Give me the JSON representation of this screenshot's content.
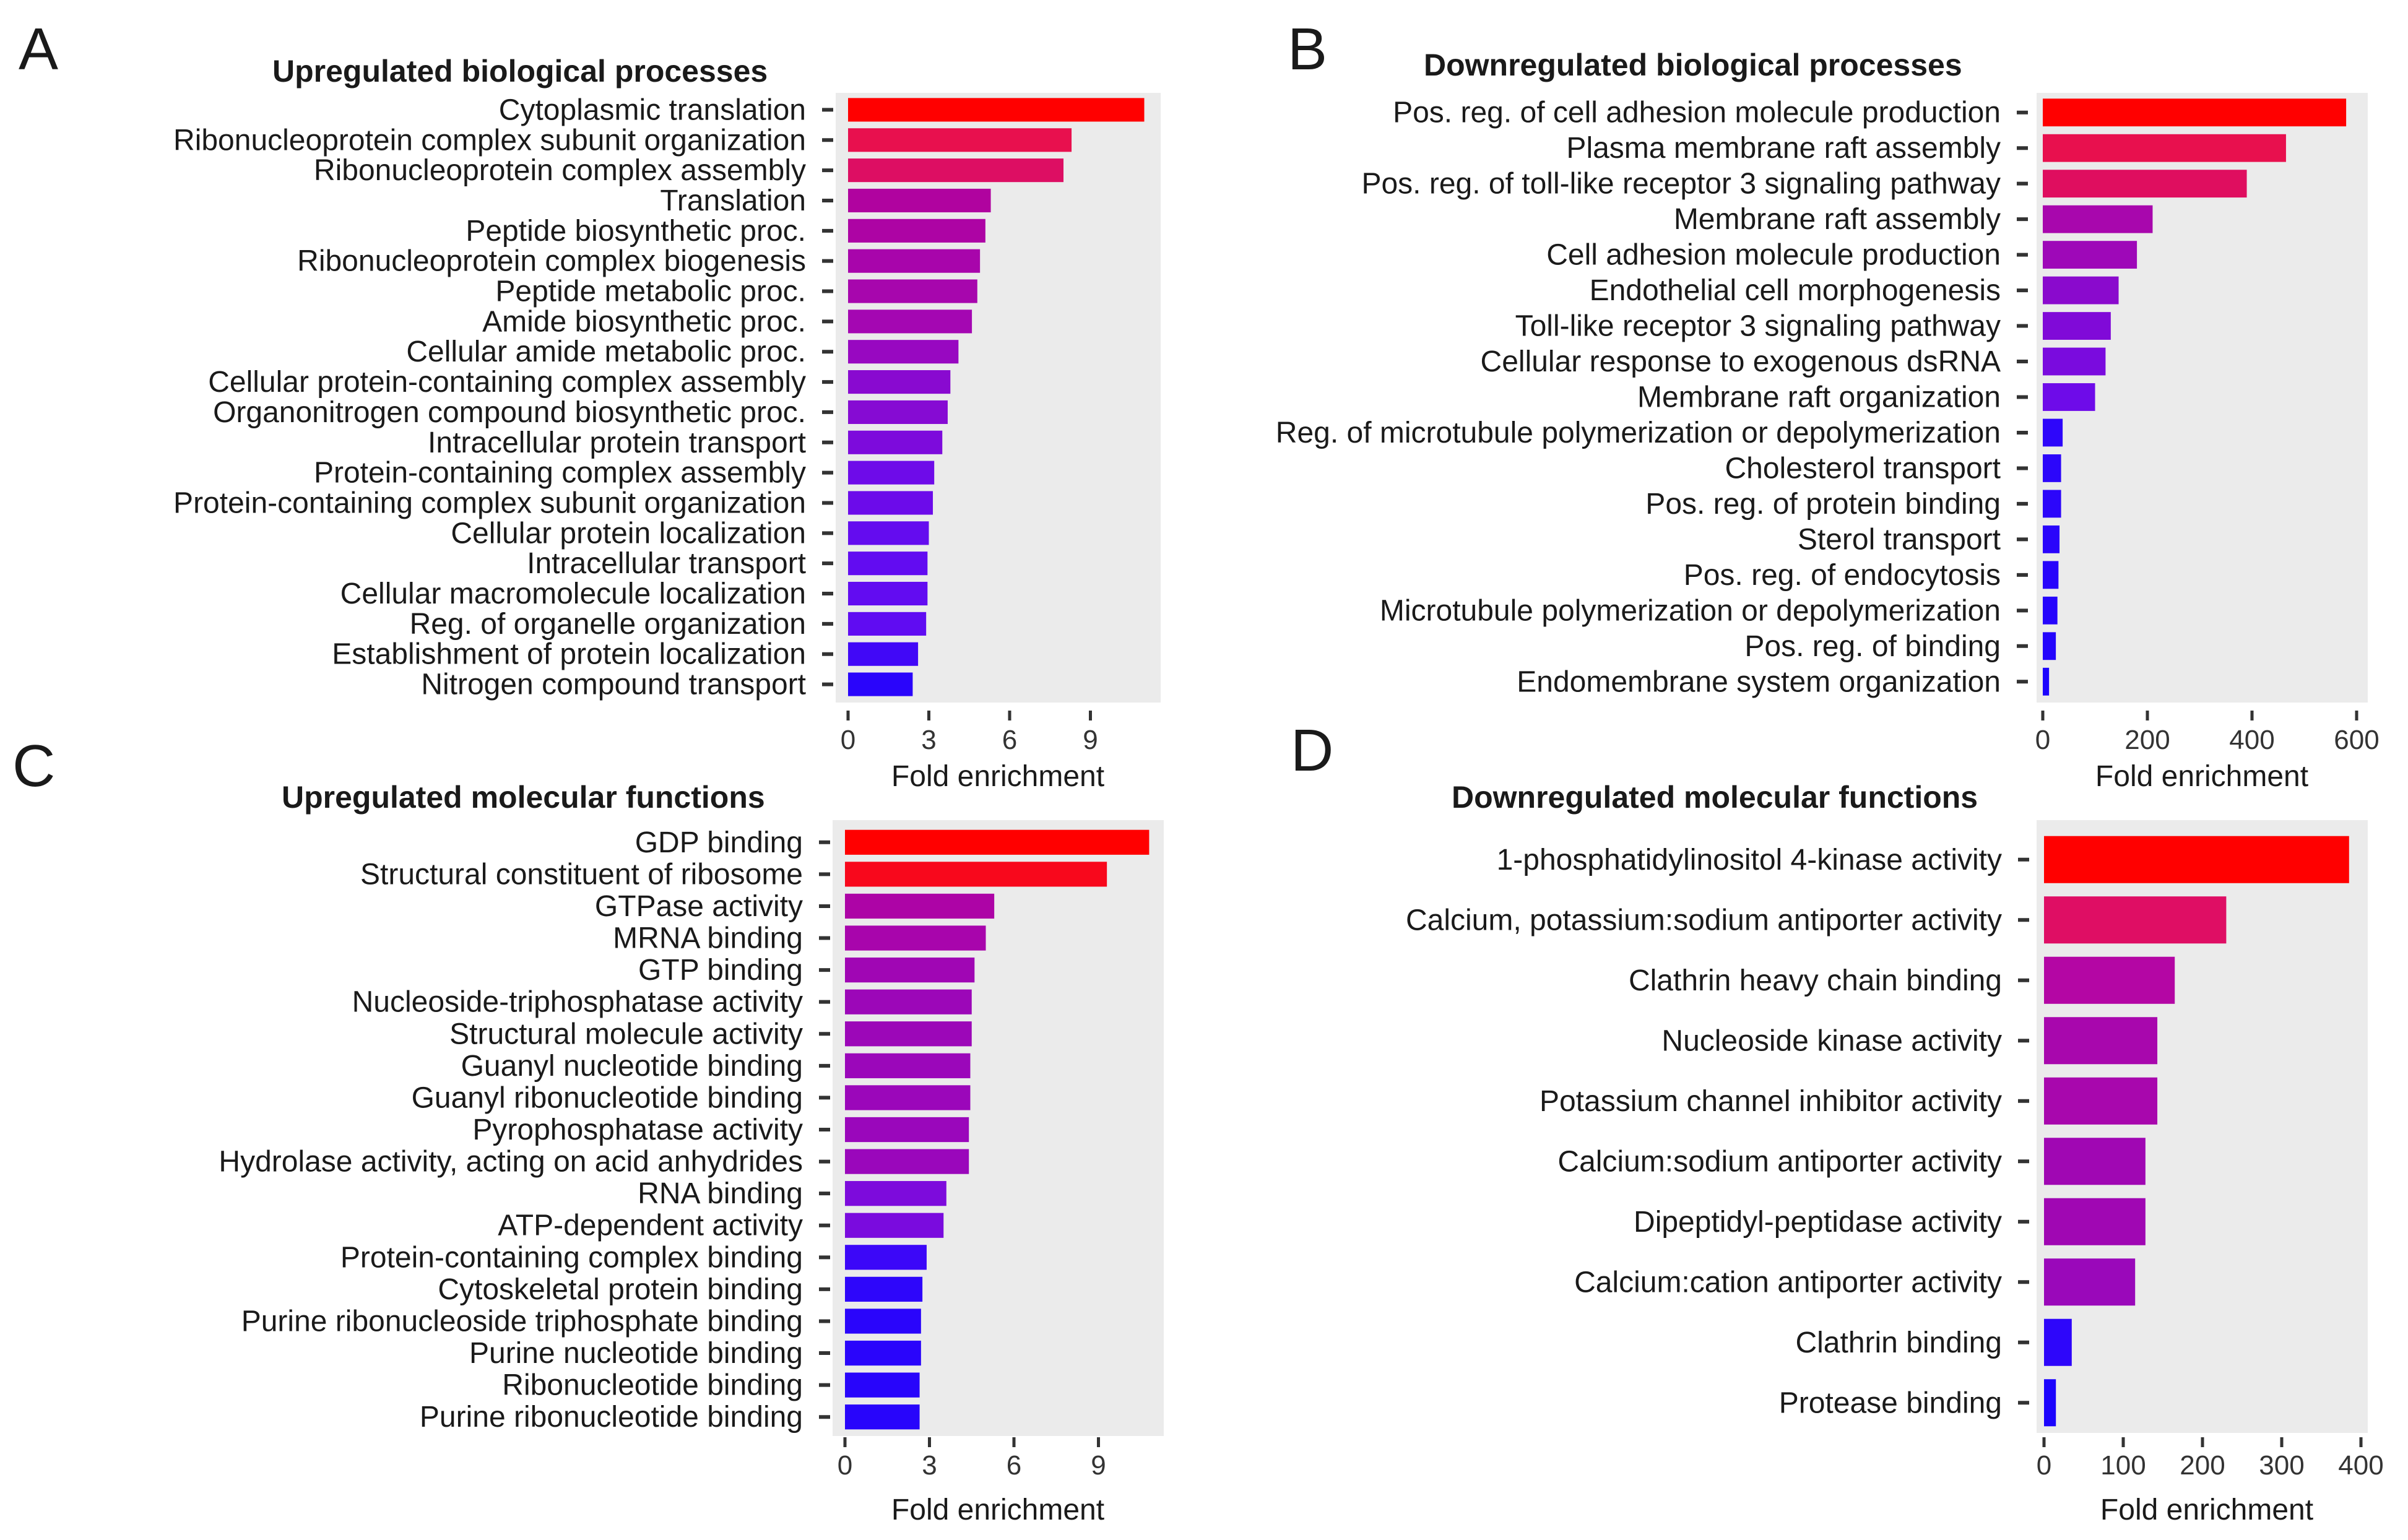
{
  "chart_data": [
    {
      "type": "bar",
      "orientation": "horizontal",
      "panel": "A",
      "title": "Upregulated biological processes",
      "xlabel": "Fold enrichment",
      "ylabel": "",
      "xlim": [
        0,
        11.5
      ],
      "xticks": [
        0,
        3,
        6,
        9
      ],
      "categories": [
        "Cytoplasmic translation",
        "Ribonucleoprotein complex subunit organization",
        "Ribonucleoprotein complex assembly",
        "Translation",
        "Peptide biosynthetic proc.",
        "Ribonucleoprotein complex biogenesis",
        "Peptide metabolic proc.",
        "Amide biosynthetic proc.",
        "Cellular amide metabolic proc.",
        "Cellular protein-containing complex assembly",
        "Organonitrogen compound biosynthetic proc.",
        "Intracellular protein transport",
        "Protein-containing complex assembly",
        "Protein-containing complex subunit organization",
        "Cellular protein localization",
        "Intracellular transport",
        "Cellular macromolecule localization",
        "Reg. of organelle organization",
        "Establishment of protein localization",
        "Nitrogen compound transport"
      ],
      "values": [
        11.0,
        8.3,
        8.0,
        5.3,
        5.1,
        4.9,
        4.8,
        4.6,
        4.1,
        3.8,
        3.7,
        3.5,
        3.2,
        3.15,
        3.0,
        2.95,
        2.95,
        2.9,
        2.6,
        2.4
      ],
      "colors": [
        "#ff0000",
        "#e8104e",
        "#dd0e63",
        "#b0039f",
        "#ad04a4",
        "#a805ab",
        "#a706ad",
        "#a407b2",
        "#9808c1",
        "#890ad0",
        "#860bd3",
        "#7d0bdc",
        "#6e0be9",
        "#6c0bea",
        "#640cef",
        "#620cf1",
        "#620cf1",
        "#600cf2",
        "#4108f7",
        "#2a05fb"
      ],
      "grid": false,
      "legend": "none"
    },
    {
      "type": "bar",
      "orientation": "horizontal",
      "panel": "B",
      "title": "Downregulated biological processes",
      "xlabel": "Fold enrichment",
      "ylabel": "",
      "xlim": [
        0,
        610
      ],
      "xticks": [
        0,
        200,
        400,
        600
      ],
      "categories": [
        "Pos. reg. of cell adhesion molecule production",
        "Plasma membrane raft assembly",
        "Pos. reg. of toll-like receptor 3 signaling pathway",
        "Membrane raft assembly",
        "Cell adhesion molecule production",
        "Endothelial cell morphogenesis",
        "Toll-like receptor 3 signaling pathway",
        "Cellular response to exogenous dsRNA",
        "Membrane raft organization",
        "Reg. of microtubule polymerization or depolymerization",
        "Cholesterol transport",
        "Pos. reg. of protein binding",
        "Sterol transport",
        "Pos. reg. of endocytosis",
        "Microtubule polymerization or depolymerization",
        "Pos. reg. of binding",
        "Endomembrane system organization"
      ],
      "values": [
        580,
        465,
        390,
        210,
        180,
        145,
        130,
        120,
        100,
        38,
        35,
        35,
        32,
        30,
        28,
        25,
        12
      ],
      "colors": [
        "#ff0000",
        "#e8104e",
        "#df0e5f",
        "#a807ad",
        "#9e08b8",
        "#8a0acd",
        "#800ad8",
        "#7a0bde",
        "#6e0be9",
        "#2e06fa",
        "#2c06fa",
        "#2c06fa",
        "#2a05fb",
        "#2805fb",
        "#2605fc",
        "#2405fc",
        "#1c04fd"
      ],
      "grid": false,
      "legend": "none"
    },
    {
      "type": "bar",
      "orientation": "horizontal",
      "panel": "C",
      "title": "Upregulated molecular functions",
      "xlabel": "Fold enrichment",
      "ylabel": "",
      "xlim": [
        0,
        11.6
      ],
      "xticks": [
        0,
        3,
        6,
        9
      ],
      "categories": [
        "GDP binding",
        "Structural constituent of ribosome",
        "GTPase activity",
        "MRNA binding",
        "GTP binding",
        "Nucleoside-triphosphatase activity",
        "Structural molecule activity",
        "Guanyl nucleotide binding",
        "Guanyl ribonucleotide binding",
        "Pyrophosphatase activity",
        "Hydrolase activity, acting on acid anhydrides",
        "RNA binding",
        "ATP-dependent activity",
        "Protein-containing complex binding",
        "Cytoskeletal protein binding",
        "Purine ribonucleoside triphosphate binding",
        "Purine nucleotide binding",
        "Ribonucleotide binding",
        "Purine ribonucleotide binding"
      ],
      "values": [
        10.8,
        9.3,
        5.3,
        5.0,
        4.6,
        4.5,
        4.5,
        4.45,
        4.45,
        4.4,
        4.4,
        3.6,
        3.5,
        2.9,
        2.75,
        2.7,
        2.7,
        2.65,
        2.65
      ],
      "colors": [
        "#ff0000",
        "#f8081c",
        "#ad04a6",
        "#a805ac",
        "#a006b4",
        "#9c07b8",
        "#9c07b8",
        "#9b07ba",
        "#9b07ba",
        "#9a07bb",
        "#9a07bb",
        "#7d0bdc",
        "#7a0bde",
        "#3c07f8",
        "#2e06fa",
        "#2a05fb",
        "#2a05fb",
        "#2805fb",
        "#2805fb"
      ],
      "grid": false,
      "legend": "none"
    },
    {
      "type": "bar",
      "orientation": "horizontal",
      "panel": "D",
      "title": "Downregulated molecular functions",
      "xlabel": "Fold enrichment",
      "ylabel": "",
      "xlim": [
        0,
        400
      ],
      "xticks": [
        0,
        100,
        200,
        300,
        400
      ],
      "categories": [
        "1-phosphatidylinositol 4-kinase activity",
        "Calcium, potassium:sodium antiporter activity",
        "Clathrin heavy chain binding",
        "Nucleoside kinase activity",
        "Potassium channel inhibitor activity",
        "Calcium:sodium antiporter activity",
        "Dipeptidyl-peptidase activity",
        "Calcium:cation antiporter activity",
        "Clathrin binding",
        "Protease binding"
      ],
      "values": [
        385,
        230,
        165,
        143,
        143,
        128,
        128,
        115,
        35,
        15
      ],
      "colors": [
        "#ff0000",
        "#df0e64",
        "#b406a4",
        "#a807ad",
        "#a807ad",
        "#a007b3",
        "#a007b3",
        "#9a08ba",
        "#2e06fa",
        "#1c04fd"
      ],
      "grid": false,
      "legend": "none"
    }
  ]
}
